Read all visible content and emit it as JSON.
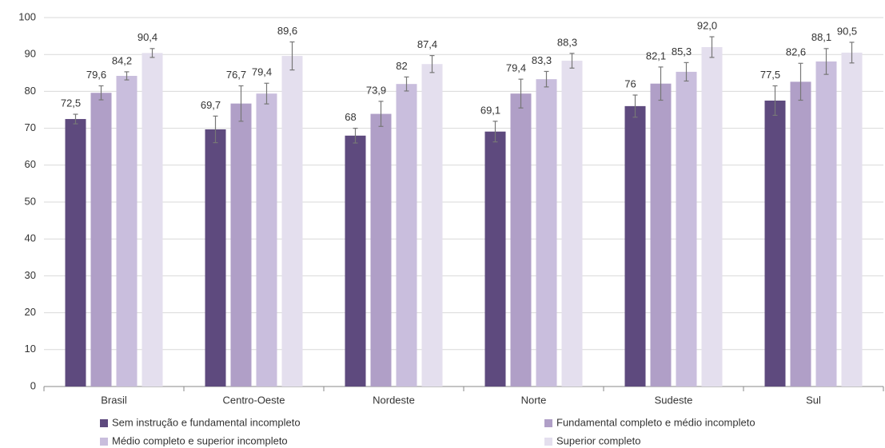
{
  "chart_data": {
    "type": "bar",
    "categories": [
      "Brasil",
      "Centro-Oeste",
      "Nordeste",
      "Norte",
      "Sudeste",
      "Sul"
    ],
    "series": [
      {
        "name": "Sem instrução e fundamental incompleto",
        "color": "#5e4a7e",
        "values": [
          72.5,
          69.7,
          68,
          69.1,
          76,
          77.5
        ],
        "value_labels": [
          "72,5",
          "69,7",
          "68",
          "69,1",
          "76",
          "77,5"
        ],
        "errors": [
          1.3,
          3.6,
          2.0,
          2.8,
          3.0,
          4.0
        ]
      },
      {
        "name": "Fundamental completo e médio incompleto",
        "color": "#b09fc7",
        "values": [
          79.6,
          76.7,
          73.9,
          79.4,
          82.1,
          82.6
        ],
        "value_labels": [
          "79,6",
          "76,7",
          "73,9",
          "79,4",
          "82,1",
          "82,6"
        ],
        "errors": [
          1.9,
          4.8,
          3.4,
          3.9,
          4.5,
          5.0
        ]
      },
      {
        "name": "Médio completo e superior incompleto",
        "color": "#c9bedd",
        "values": [
          84.2,
          79.4,
          82,
          83.3,
          85.3,
          88.1
        ],
        "value_labels": [
          "84,2",
          "79,4",
          "82",
          "83,3",
          "85,3",
          "88,1"
        ],
        "errors": [
          1.1,
          2.8,
          1.9,
          2.1,
          2.5,
          3.5
        ]
      },
      {
        "name": "Superior completo",
        "color": "#e4dfee",
        "values": [
          90.4,
          89.6,
          87.4,
          88.3,
          92.0,
          90.5
        ],
        "value_labels": [
          "90,4",
          "89,6",
          "87,4",
          "88,3",
          "92,0",
          "90,5"
        ],
        "errors": [
          1.2,
          3.8,
          2.3,
          2.0,
          2.8,
          2.8
        ]
      }
    ],
    "ylim": [
      0,
      100
    ],
    "yticks": [
      0,
      10,
      20,
      30,
      40,
      50,
      60,
      70,
      80,
      90,
      100
    ],
    "grid": true,
    "legend": "bottom"
  }
}
